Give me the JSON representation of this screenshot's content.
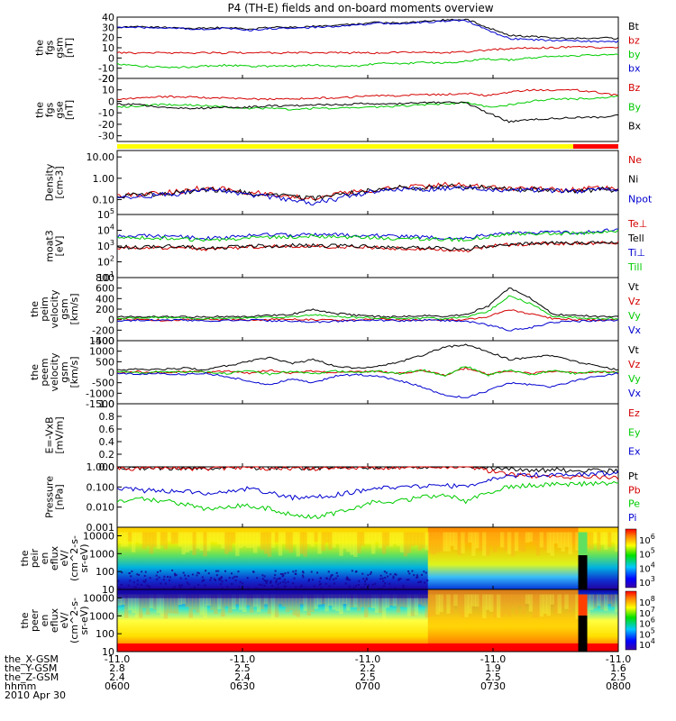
{
  "title": "P4 (TH-E) fields and on-board moments overview",
  "colors": {
    "black": "#000000",
    "red": "#d40000",
    "green": "#00cc00",
    "blue": "#0000d0",
    "yellow": "#ffff00",
    "redbar": "#ff0000"
  },
  "chart_data": [
    {
      "type": "line",
      "id": "fgs_gsm",
      "ylabel": [
        "the",
        "fgs",
        "gsm",
        "[nT]"
      ],
      "yticks": [
        "40",
        "30",
        "20",
        "10",
        "0",
        "-10",
        "-20"
      ],
      "ylim": [
        -20,
        40
      ],
      "series": [
        {
          "name": "Bt",
          "color": "black",
          "values": [
            30,
            31,
            30,
            29,
            29,
            30,
            28,
            30,
            30,
            31,
            32,
            33,
            35,
            34,
            36,
            37,
            38,
            30,
            22,
            21,
            20,
            19,
            20,
            19
          ]
        },
        {
          "name": "bz",
          "color": "red",
          "values": [
            5,
            5,
            5,
            5,
            5,
            5,
            5,
            5,
            5,
            5,
            5,
            5,
            5,
            6,
            6,
            5,
            6,
            8,
            9,
            10,
            10,
            11,
            10,
            10
          ]
        },
        {
          "name": "by",
          "color": "green",
          "values": [
            -6,
            -8,
            -9,
            -9,
            -8,
            -7,
            -8,
            -8,
            -8,
            -7,
            -8,
            -8,
            -5,
            -6,
            -4,
            -5,
            -3,
            -1,
            -2,
            0,
            2,
            2,
            3,
            3
          ]
        },
        {
          "name": "bx",
          "color": "blue",
          "values": [
            30,
            30,
            29,
            29,
            28,
            29,
            27,
            29,
            29,
            30,
            31,
            32,
            34,
            33,
            35,
            36,
            37,
            27,
            19,
            18,
            17,
            17,
            16,
            16
          ]
        }
      ]
    },
    {
      "type": "line",
      "id": "fgs_gse",
      "ylabel": [
        "the",
        "fgs",
        "gse",
        "[nT]"
      ],
      "yticks": [
        "20",
        "10",
        "0",
        "-10",
        "-20",
        "-30"
      ],
      "ylim": [
        -35,
        20
      ],
      "series": [
        {
          "name": "Bz",
          "color": "red",
          "values": [
            2,
            3,
            4,
            4,
            3,
            3,
            2,
            2,
            2,
            3,
            3,
            4,
            5,
            5,
            6,
            6,
            7,
            5,
            8,
            10,
            10,
            10,
            8,
            5
          ]
        },
        {
          "name": "By",
          "color": "green",
          "values": [
            -5,
            -4,
            -3,
            -3,
            -4,
            -5,
            -6,
            -6,
            -7,
            -6,
            -6,
            -5,
            -5,
            -4,
            -3,
            -2,
            -1,
            -5,
            -3,
            0,
            2,
            2,
            3,
            4
          ]
        },
        {
          "name": "Bx",
          "color": "black",
          "values": [
            -2,
            -3,
            -5,
            -6,
            -6,
            -5,
            -5,
            -4,
            -4,
            -3,
            -3,
            -2,
            -2,
            -2,
            -1,
            -1,
            -1,
            -10,
            -18,
            -16,
            -15,
            -14,
            -14,
            -12
          ]
        }
      ]
    },
    {
      "type": "line",
      "id": "density",
      "log": true,
      "ylabel": [
        "Density",
        "[cm-3]"
      ],
      "yticks": [
        "10.00",
        "1.00",
        "0.10"
      ],
      "ylim": [
        0.02,
        20
      ],
      "series": [
        {
          "name": "Ne",
          "color": "red",
          "values": [
            0.15,
            0.17,
            0.2,
            0.25,
            0.35,
            0.3,
            0.22,
            0.18,
            0.14,
            0.12,
            0.18,
            0.25,
            0.3,
            0.45,
            0.4,
            0.5,
            0.45,
            0.4,
            0.3,
            0.35,
            0.3,
            0.28,
            0.35,
            0.3
          ]
        },
        {
          "name": "Ni",
          "color": "black",
          "values": [
            0.15,
            0.16,
            0.18,
            0.22,
            0.3,
            0.28,
            0.2,
            0.17,
            0.13,
            0.11,
            0.16,
            0.22,
            0.28,
            0.4,
            0.35,
            0.42,
            0.4,
            0.35,
            0.28,
            0.3,
            0.28,
            0.26,
            0.3,
            0.28
          ]
        },
        {
          "name": "Npot",
          "color": "blue",
          "values": [
            0.13,
            0.14,
            0.16,
            0.2,
            0.28,
            0.25,
            0.18,
            0.13,
            0.08,
            0.07,
            0.1,
            0.18,
            0.25,
            0.32,
            0.3,
            0.35,
            0.33,
            0.3,
            0.25,
            0.27,
            0.25,
            0.24,
            0.28,
            0.3
          ]
        }
      ]
    },
    {
      "type": "line",
      "id": "temperature",
      "log": true,
      "ylabel": [
        "moat3",
        "[eV]"
      ],
      "yticks": [
        "10^5",
        "10^4",
        "10^3",
        "10^2",
        "10^1"
      ],
      "ylim": [
        10,
        100000
      ],
      "series": [
        {
          "name": "Te⊥",
          "color": "red",
          "values": [
            800,
            700,
            800,
            900,
            600,
            700,
            900,
            900,
            1000,
            1000,
            900,
            900,
            800,
            700,
            700,
            600,
            500,
            900,
            1200,
            1400,
            1500,
            1500,
            1500,
            1600
          ]
        },
        {
          "name": "Tell",
          "color": "black",
          "values": [
            900,
            800,
            900,
            1000,
            700,
            800,
            1000,
            1000,
            1100,
            1100,
            1000,
            1000,
            900,
            800,
            800,
            700,
            600,
            1000,
            1300,
            1500,
            1600,
            1600,
            1600,
            1700
          ]
        },
        {
          "name": "Ti⊥",
          "color": "blue",
          "values": [
            4000,
            4500,
            4200,
            4000,
            3000,
            3500,
            4500,
            5000,
            5000,
            5500,
            5000,
            4800,
            4500,
            4000,
            3800,
            3500,
            3000,
            5000,
            6500,
            7000,
            7200,
            7500,
            7800,
            12000
          ]
        },
        {
          "name": "Till",
          "color": "green",
          "values": [
            3000,
            3400,
            3200,
            3000,
            2200,
            2600,
            3400,
            3800,
            3800,
            4200,
            3800,
            3600,
            3400,
            3000,
            2900,
            2700,
            2300,
            4000,
            5500,
            6000,
            6200,
            6500,
            6800,
            10000
          ]
        }
      ]
    },
    {
      "type": "line",
      "id": "peim_velocity",
      "ylabel": [
        "the",
        "peim",
        "velocity",
        "gsm",
        "[km/s]"
      ],
      "yticks": [
        "800",
        "600",
        "400",
        "200",
        "0",
        "-200",
        "-400"
      ],
      "ylim": [
        -400,
        800
      ],
      "series": [
        {
          "name": "Vt",
          "color": "black",
          "values": [
            50,
            60,
            60,
            50,
            50,
            60,
            60,
            80,
            100,
            200,
            120,
            80,
            60,
            50,
            80,
            60,
            100,
            250,
            600,
            400,
            100,
            80,
            60,
            50
          ]
        },
        {
          "name": "Vz",
          "color": "red",
          "values": [
            10,
            0,
            -10,
            0,
            10,
            0,
            -10,
            0,
            10,
            0,
            -10,
            0,
            10,
            0,
            -10,
            0,
            0,
            50,
            200,
            100,
            20,
            0,
            -10,
            0
          ]
        },
        {
          "name": "Vy",
          "color": "green",
          "values": [
            20,
            30,
            40,
            30,
            20,
            30,
            40,
            50,
            50,
            100,
            60,
            40,
            30,
            20,
            30,
            20,
            40,
            150,
            450,
            300,
            60,
            40,
            20,
            20
          ]
        },
        {
          "name": "Vx",
          "color": "blue",
          "values": [
            -20,
            -10,
            0,
            -10,
            -20,
            -10,
            0,
            -20,
            -30,
            -50,
            -30,
            -20,
            -10,
            -20,
            -10,
            -20,
            -30,
            -100,
            -200,
            -150,
            -50,
            -30,
            -20,
            -10
          ]
        }
      ]
    },
    {
      "type": "line",
      "id": "peem_velocity",
      "ylabel": [
        "the",
        "peem",
        "velocity",
        "gsm",
        "[km/s]"
      ],
      "yticks": [
        "1500",
        "1000",
        "500",
        "0",
        "-500",
        "-1000",
        "-1500"
      ],
      "ylim": [
        -1500,
        1500
      ],
      "series": [
        {
          "name": "Vt",
          "color": "black",
          "values": [
            100,
            150,
            120,
            200,
            100,
            300,
            500,
            700,
            400,
            600,
            300,
            200,
            300,
            500,
            800,
            1200,
            1300,
            1000,
            600,
            700,
            800,
            500,
            300,
            100
          ]
        },
        {
          "name": "Vz",
          "color": "red",
          "values": [
            0,
            30,
            -30,
            40,
            0,
            50,
            -50,
            80,
            -40,
            60,
            -30,
            20,
            40,
            -60,
            100,
            -150,
            200,
            -100,
            80,
            -60,
            50,
            -40,
            20,
            0
          ]
        },
        {
          "name": "Vy",
          "color": "green",
          "values": [
            20,
            -30,
            40,
            -20,
            30,
            -60,
            80,
            -100,
            60,
            -90,
            50,
            -30,
            60,
            -80,
            120,
            -200,
            300,
            -150,
            100,
            -120,
            80,
            -60,
            30,
            -10
          ]
        },
        {
          "name": "Vx",
          "color": "blue",
          "values": [
            -50,
            -80,
            -60,
            -100,
            -50,
            -200,
            -400,
            -600,
            -300,
            -500,
            -200,
            -100,
            -200,
            -400,
            -700,
            -1100,
            -1200,
            -900,
            -500,
            -600,
            -700,
            -400,
            -200,
            -50
          ]
        }
      ]
    },
    {
      "type": "line",
      "id": "exb",
      "ylabel": [
        "E=-VxB",
        "[mV/m]"
      ],
      "yticks": [
        "1.0",
        "0.8",
        "0.6",
        "0.4",
        "0.2",
        "0.0"
      ],
      "ylim": [
        0,
        1
      ],
      "series": [
        {
          "name": "Ez",
          "color": "red",
          "values": []
        },
        {
          "name": "Ey",
          "color": "green",
          "values": []
        },
        {
          "name": "Ex",
          "color": "blue",
          "values": []
        }
      ]
    },
    {
      "type": "line",
      "id": "pressure",
      "log": true,
      "ylabel": [
        "Pressure",
        "[nPa]"
      ],
      "yticks": [
        "1.000",
        "0.100",
        "0.010",
        "0.001"
      ],
      "ylim": [
        0.001,
        1
      ],
      "series": [
        {
          "name": "Pt",
          "color": "black",
          "values": [
            0.9,
            0.9,
            0.9,
            0.9,
            0.9,
            0.9,
            0.9,
            0.9,
            0.9,
            0.9,
            0.95,
            1,
            1,
            1.05,
            1.05,
            1.05,
            1.05,
            0.9,
            0.8,
            0.7,
            0.7,
            0.65,
            0.65,
            0.6
          ]
        },
        {
          "name": "Pb",
          "color": "red",
          "values": [
            0.85,
            0.85,
            0.85,
            0.85,
            0.85,
            0.85,
            0.85,
            0.85,
            0.85,
            0.85,
            0.9,
            0.95,
            0.95,
            1,
            1,
            1,
            1,
            0.6,
            0.4,
            0.35,
            0.3,
            0.3,
            0.3,
            0.28
          ]
        },
        {
          "name": "Pe",
          "color": "green",
          "values": [
            0.02,
            0.025,
            0.02,
            0.015,
            0.008,
            0.01,
            0.012,
            0.008,
            0.004,
            0.003,
            0.005,
            0.01,
            0.02,
            0.02,
            0.03,
            0.04,
            0.02,
            0.05,
            0.1,
            0.12,
            0.13,
            0.14,
            0.15,
            0.15
          ]
        },
        {
          "name": "Pi",
          "color": "blue",
          "values": [
            0.08,
            0.07,
            0.06,
            0.07,
            0.05,
            0.06,
            0.08,
            0.05,
            0.03,
            0.03,
            0.04,
            0.06,
            0.08,
            0.1,
            0.1,
            0.12,
            0.1,
            0.2,
            0.35,
            0.4,
            0.4,
            0.42,
            0.45,
            0.5
          ]
        }
      ]
    },
    {
      "type": "heatmap",
      "id": "peir_spectrogram",
      "ylabel": [
        "the",
        "peir",
        "en",
        "eflux",
        "eV/",
        "(cm^2-s-",
        "sr-eV)"
      ],
      "yticks": [
        "10000",
        "1000",
        "100",
        "10"
      ],
      "ylim": [
        10,
        30000
      ],
      "colorbar_ticks": [
        "10^6",
        "10^5",
        "10^4",
        "10^3"
      ]
    },
    {
      "type": "heatmap",
      "id": "peer_spectrogram",
      "ylabel": [
        "the",
        "peer",
        "en",
        "eflux",
        "eV/",
        "(cm^2-s-",
        "sr-eV)"
      ],
      "yticks": [
        "10000",
        "1000",
        "100",
        "10"
      ],
      "ylim": [
        10,
        30000
      ],
      "colorbar_ticks": [
        "10^8",
        "10^7",
        "10^6",
        "10^5",
        "10^4"
      ]
    }
  ],
  "status_bar": {
    "yellow_until_fraction": 0.86
  },
  "ephemeris": {
    "row_labels": [
      "the_X-GSM",
      "the_Y-GSM",
      "the_Z-GSM",
      "hhmm",
      "2010 Apr 30"
    ],
    "columns": [
      [
        "-11.0",
        "2.8",
        "2.4",
        "0600"
      ],
      [
        "-11.0",
        "2.5",
        "2.4",
        "0630"
      ],
      [
        "-11.0",
        "2.2",
        "2.5",
        "0700"
      ],
      [
        "-11.0",
        "1.9",
        "2.5",
        "0730"
      ],
      [
        "-11.0",
        "1.6",
        "2.5",
        "0800"
      ]
    ]
  }
}
